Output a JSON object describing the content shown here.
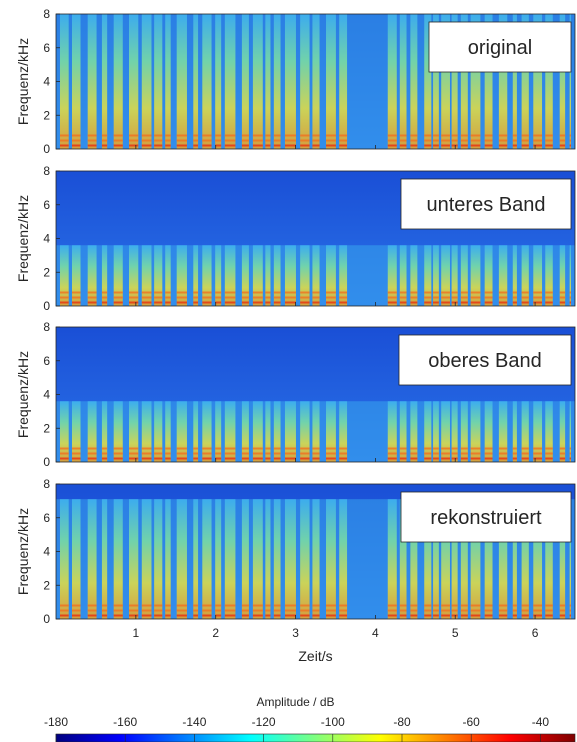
{
  "chart_data": {
    "type": "heatmap",
    "x_axis": {
      "label": "Zeit/s",
      "range": [
        0,
        6.5
      ],
      "ticks": [
        1,
        2,
        3,
        4,
        5,
        6
      ],
      "tick_labels": [
        "1",
        "2",
        "3",
        "4",
        "5",
        "6"
      ]
    },
    "colorbar": {
      "label": "Amplitude / dB",
      "range": [
        -180,
        -30
      ],
      "ticks": [
        -180,
        -160,
        -140,
        -120,
        -100,
        -80,
        -60,
        -40
      ],
      "tick_labels": [
        "-180",
        "-160",
        "-140",
        "-120",
        "-100",
        "-80",
        "-60",
        "-40"
      ],
      "colormap": "jet",
      "colors": [
        "#00007f",
        "#0000ff",
        "#007fff",
        "#00ffff",
        "#7fff7f",
        "#ffff00",
        "#ff7f00",
        "#ff0000",
        "#7f0000"
      ]
    },
    "panels": [
      {
        "legend": "original",
        "ylabel": "Frequenz/kHz",
        "ylim": [
          0,
          8
        ],
        "y_ticks": [
          0,
          2,
          4,
          6,
          8
        ],
        "y_tick_labels": [
          "0",
          "2",
          "4",
          "6",
          "8"
        ],
        "band_khz": [
          0,
          8
        ]
      },
      {
        "legend": "unteres Band",
        "ylabel": "Frequenz/kHz",
        "ylim": [
          0,
          8
        ],
        "y_ticks": [
          0,
          2,
          4,
          6,
          8
        ],
        "y_tick_labels": [
          "0",
          "2",
          "4",
          "6",
          "8"
        ],
        "band_khz": [
          0,
          3.6
        ]
      },
      {
        "legend": "oberes Band",
        "ylabel": "Frequenz/kHz",
        "ylim": [
          0,
          8
        ],
        "y_ticks": [
          0,
          2,
          4,
          6,
          8
        ],
        "y_tick_labels": [
          "0",
          "2",
          "4",
          "6",
          "8"
        ],
        "band_khz": [
          0,
          3.6
        ]
      },
      {
        "legend": "rekonstruiert",
        "ylabel": "Frequenz/kHz",
        "ylim": [
          0,
          8
        ],
        "y_ticks": [
          0,
          2,
          4,
          6,
          8
        ],
        "y_tick_labels": [
          "0",
          "2",
          "4",
          "6",
          "8"
        ],
        "band_khz": [
          0,
          7.1
        ]
      }
    ]
  }
}
